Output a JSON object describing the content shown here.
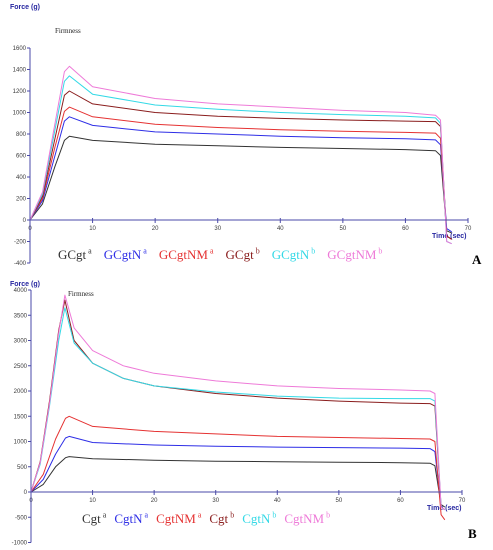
{
  "chart_data": [
    {
      "panel": "A",
      "type": "line",
      "annotation": "Firmness",
      "ylabel": "Force (g)",
      "xlabel": "Time (sec)",
      "xlim": [
        0,
        70
      ],
      "ylim": [
        -400,
        1600
      ],
      "xticks": [
        0,
        10,
        20,
        30,
        40,
        50,
        60,
        70
      ],
      "yticks": [
        -400,
        -200,
        0,
        200,
        400,
        600,
        800,
        1000,
        1200,
        1400,
        1600
      ],
      "series": [
        {
          "name": "GCgt",
          "sup": "a",
          "color": "#333333",
          "x": [
            0,
            2,
            4,
            5.5,
            6.3,
            10,
            20,
            30,
            40,
            50,
            60,
            64.8,
            65.6,
            66.6,
            67.4
          ],
          "y": [
            0,
            150,
            500,
            740,
            780,
            740,
            705,
            690,
            675,
            665,
            655,
            645,
            600,
            -100,
            -120
          ]
        },
        {
          "name": "GCgtN",
          "sup": "a",
          "color": "#2e2ee6",
          "x": [
            0,
            2,
            4,
            5.5,
            6.3,
            10,
            20,
            30,
            40,
            50,
            60,
            64.8,
            65.6,
            66.6,
            67.4
          ],
          "y": [
            0,
            180,
            600,
            920,
            960,
            880,
            820,
            800,
            780,
            765,
            755,
            745,
            700,
            -80,
            -110
          ]
        },
        {
          "name": "GCgtNM",
          "sup": "a",
          "color": "#e53232",
          "x": [
            0,
            2,
            4,
            5.5,
            6.3,
            10,
            20,
            30,
            40,
            50,
            60,
            64.8,
            65.6,
            66.6,
            67.4
          ],
          "y": [
            0,
            200,
            680,
            1010,
            1050,
            960,
            890,
            860,
            840,
            825,
            815,
            808,
            760,
            -150,
            -180
          ]
        },
        {
          "name": "GCgt",
          "sup": "b",
          "color": "#8a1d1d",
          "x": [
            0,
            2,
            4,
            5.5,
            6.3,
            10,
            20,
            30,
            40,
            50,
            60,
            64.8,
            65.6,
            66.6,
            67.4
          ],
          "y": [
            0,
            220,
            760,
            1160,
            1200,
            1080,
            1000,
            965,
            945,
            930,
            920,
            915,
            870,
            -150,
            -180
          ]
        },
        {
          "name": "GCgtN",
          "sup": "b",
          "color": "#33d9e6",
          "x": [
            0,
            2,
            4,
            5.5,
            6.3,
            10,
            20,
            30,
            40,
            50,
            60,
            64.8,
            65.6,
            66.6,
            67.4
          ],
          "y": [
            0,
            240,
            840,
            1290,
            1340,
            1170,
            1070,
            1030,
            1000,
            980,
            965,
            950,
            900,
            -200,
            -220
          ]
        },
        {
          "name": "GCgtNM",
          "sup": "b",
          "color": "#ee7ad8",
          "x": [
            0,
            2,
            4,
            5.5,
            6.3,
            10,
            20,
            30,
            40,
            50,
            60,
            64.8,
            65.6,
            66.6,
            67.4
          ],
          "y": [
            0,
            260,
            900,
            1380,
            1430,
            1240,
            1130,
            1080,
            1050,
            1020,
            1000,
            975,
            930,
            -200,
            -220
          ]
        }
      ]
    },
    {
      "panel": "B",
      "type": "line",
      "annotation": "Firmness",
      "ylabel": "Force (g)",
      "xlabel": "Time (sec)",
      "xlim": [
        0,
        70
      ],
      "ylim": [
        -1000,
        4000
      ],
      "xticks": [
        0,
        10,
        20,
        30,
        40,
        50,
        60,
        70
      ],
      "yticks": [
        -1000,
        -500,
        0,
        500,
        1000,
        1500,
        2000,
        2500,
        3000,
        3500,
        4000
      ],
      "series": [
        {
          "name": "Cgt",
          "sup": "a",
          "color": "#333333",
          "x": [
            0,
            2,
            4,
            5.6,
            6.2,
            10,
            20,
            30,
            40,
            50,
            60,
            64.8,
            65.6,
            66.6,
            67.2
          ],
          "y": [
            0,
            150,
            500,
            680,
            700,
            660,
            630,
            610,
            600,
            590,
            580,
            570,
            520,
            -250,
            -300
          ]
        },
        {
          "name": "CgtN",
          "sup": "a",
          "color": "#2e2ee6",
          "x": [
            0,
            2,
            4,
            5.6,
            6.2,
            10,
            20,
            30,
            40,
            50,
            60,
            64.8,
            65.6,
            66.6,
            67.2
          ],
          "y": [
            0,
            250,
            750,
            1070,
            1100,
            980,
            930,
            905,
            890,
            880,
            870,
            860,
            800,
            -300,
            -350
          ]
        },
        {
          "name": "CgtNM",
          "sup": "a",
          "color": "#e53232",
          "x": [
            0,
            2,
            4,
            5.6,
            6.2,
            10,
            20,
            30,
            40,
            50,
            60,
            64.8,
            65.6,
            66.6,
            67.2
          ],
          "y": [
            0,
            350,
            1050,
            1460,
            1500,
            1300,
            1200,
            1150,
            1100,
            1080,
            1060,
            1050,
            1000,
            -450,
            -550
          ]
        },
        {
          "name": "Cgt",
          "sup": "b",
          "color": "#8a1d1d",
          "x": [
            0,
            1.5,
            3,
            4.5,
            5.5,
            7,
            10,
            15,
            20,
            30,
            40,
            50,
            60,
            64.8,
            65.6,
            66.6,
            67.2
          ],
          "y": [
            0,
            600,
            1800,
            3200,
            3800,
            3000,
            2550,
            2250,
            2100,
            1950,
            1860,
            1800,
            1760,
            1750,
            1700,
            -300,
            -350
          ]
        },
        {
          "name": "CgtN",
          "sup": "b",
          "color": "#33d9e6",
          "x": [
            0,
            1.5,
            3,
            4.5,
            5.5,
            7,
            10,
            15,
            20,
            30,
            40,
            50,
            60,
            64.8,
            65.6,
            66.6,
            67.2
          ],
          "y": [
            0,
            550,
            1700,
            3000,
            3650,
            2950,
            2550,
            2250,
            2100,
            1980,
            1900,
            1860,
            1850,
            1850,
            1800,
            -300,
            -350
          ]
        },
        {
          "name": "CgtNM",
          "sup": "b",
          "color": "#ee7ad8",
          "x": [
            0,
            1.5,
            3,
            4.5,
            5.5,
            7,
            10,
            15,
            20,
            30,
            40,
            50,
            60,
            64.8,
            65.6,
            66.6,
            67.2
          ],
          "y": [
            0,
            580,
            1750,
            3150,
            3900,
            3250,
            2800,
            2500,
            2350,
            2200,
            2100,
            2050,
            2020,
            2000,
            1950,
            -300,
            -350
          ]
        }
      ]
    }
  ]
}
